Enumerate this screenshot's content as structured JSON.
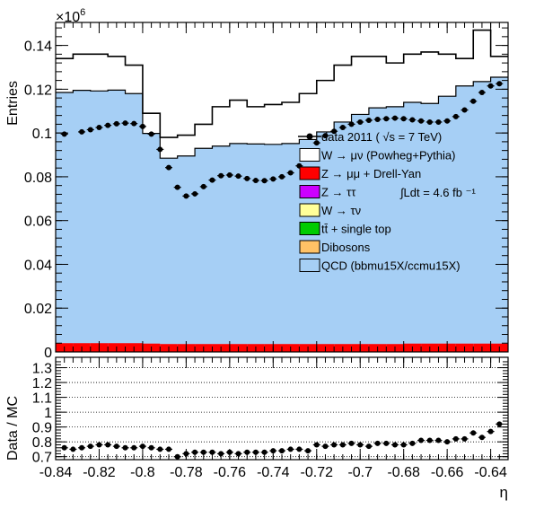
{
  "chart_data": [
    {
      "type": "area",
      "ylabel": "Entries",
      "y_exponent_label": "×10",
      "y_exponent_power": "6",
      "xlim": [
        -0.84,
        -0.632
      ],
      "ylim": [
        0,
        0.1505
      ],
      "y_ticks": [
        0,
        0.02,
        0.04,
        0.06,
        0.08,
        0.1,
        0.12,
        0.14
      ],
      "y_tick_labels": [
        "0",
        "0.02",
        "0.04",
        "0.06",
        "0.08",
        "0.1",
        "0.12",
        "0.14"
      ],
      "grid": false,
      "legend_position": "right",
      "bin_edges": [
        -0.84,
        -0.832,
        -0.824,
        -0.816,
        -0.808,
        -0.8,
        -0.792,
        -0.784,
        -0.776,
        -0.768,
        -0.76,
        -0.752,
        -0.744,
        -0.736,
        -0.728,
        -0.72,
        -0.712,
        -0.704,
        -0.696,
        -0.688,
        -0.68,
        -0.672,
        -0.664,
        -0.656,
        -0.648,
        -0.64,
        -0.632
      ],
      "series": [
        {
          "name": "QCD (bbmu15X/ccmu15X)",
          "color": "#a6cff5",
          "values": [
            0.1185,
            0.1195,
            0.1192,
            0.1196,
            0.118,
            0.0998,
            0.0885,
            0.0895,
            0.093,
            0.094,
            0.0952,
            0.095,
            0.0948,
            0.0952,
            0.097,
            0.1005,
            0.105,
            0.1085,
            0.1115,
            0.112,
            0.114,
            0.1135,
            0.1168,
            0.1215,
            0.1235,
            0.1255
          ]
        },
        {
          "name": "Z → μμ + Drell-Yan",
          "color": "#ff0000",
          "values": [
            0.004,
            0.004,
            0.004,
            0.004,
            0.004,
            0.0038,
            0.0036,
            0.0036,
            0.0036,
            0.0036,
            0.0036,
            0.0036,
            0.0036,
            0.0036,
            0.0036,
            0.0036,
            0.0036,
            0.0036,
            0.0036,
            0.0036,
            0.0038,
            0.0038,
            0.0038,
            0.0038,
            0.0038,
            0.0038
          ]
        },
        {
          "name": "W → μν (Powheg+Pythia)",
          "color": "#ffffff",
          "values": [
            0.134,
            0.136,
            0.136,
            0.135,
            0.131,
            0.109,
            0.098,
            0.099,
            0.104,
            0.112,
            0.115,
            0.112,
            0.113,
            0.114,
            0.118,
            0.124,
            0.131,
            0.135,
            0.135,
            0.132,
            0.136,
            0.137,
            0.136,
            0.134,
            0.147,
            0.135
          ]
        }
      ],
      "legend_only_series": [
        {
          "name": "Z → ττ",
          "color": "#cc00ff"
        },
        {
          "name": "W → τν",
          "color": "#ffff99"
        },
        {
          "name": "tt̄ + single top",
          "color": "#00cc00"
        },
        {
          "name": "Dibosons",
          "color": "#ffc266"
        }
      ],
      "data_series": {
        "name": "data 2011 ( √s = 7 TeV)",
        "x": [
          -0.836,
          -0.828,
          -0.824,
          -0.82,
          -0.816,
          -0.812,
          -0.808,
          -0.804,
          -0.8,
          -0.796,
          -0.792,
          -0.788,
          -0.784,
          -0.78,
          -0.776,
          -0.772,
          -0.768,
          -0.764,
          -0.76,
          -0.756,
          -0.752,
          -0.748,
          -0.744,
          -0.74,
          -0.736,
          -0.732,
          -0.728,
          -0.724,
          -0.72,
          -0.716,
          -0.712,
          -0.708,
          -0.704,
          -0.7,
          -0.696,
          -0.692,
          -0.688,
          -0.684,
          -0.68,
          -0.676,
          -0.672,
          -0.668,
          -0.664,
          -0.66,
          -0.656,
          -0.652,
          -0.648,
          -0.644,
          -0.64,
          -0.636
        ],
        "y": [
          0.0995,
          0.1005,
          0.1015,
          0.1025,
          0.1035,
          0.1042,
          0.1045,
          0.1043,
          0.103,
          0.0995,
          0.0925,
          0.0842,
          0.0752,
          0.0712,
          0.0722,
          0.0755,
          0.0785,
          0.0805,
          0.0808,
          0.0803,
          0.0792,
          0.0783,
          0.0782,
          0.079,
          0.08,
          0.0818,
          0.085,
          0.09,
          0.0955,
          0.0988,
          0.1008,
          0.1025,
          0.104,
          0.105,
          0.1058,
          0.1062,
          0.1065,
          0.1068,
          0.1065,
          0.106,
          0.1055,
          0.105,
          0.105,
          0.1055,
          0.1075,
          0.1105,
          0.1145,
          0.1185,
          0.1215,
          0.1225
        ]
      },
      "annotation": "∫Ldt = 4.6 fb ⁻¹"
    },
    {
      "type": "scatter",
      "ylabel": "Data / MC",
      "xlabel": "η",
      "xlim": [
        -0.84,
        -0.632
      ],
      "ylim": [
        0.68,
        1.37
      ],
      "x_ticks": [
        -0.84,
        -0.82,
        -0.8,
        -0.78,
        -0.76,
        -0.74,
        -0.72,
        -0.7,
        -0.68,
        -0.66,
        -0.64
      ],
      "x_tick_labels": [
        "-0.84",
        "-0.82",
        "-0.8",
        "-0.78",
        "-0.76",
        "-0.74",
        "-0.72",
        "-0.7",
        "-0.68",
        "-0.66",
        "-0.64"
      ],
      "y_ticks": [
        0.7,
        0.8,
        0.9,
        1.0,
        1.1,
        1.2,
        1.3
      ],
      "y_tick_labels": [
        "0.7",
        "0.8",
        "0.9",
        "1",
        "1.1",
        "1.2",
        "1.3"
      ],
      "grid": true,
      "x": [
        -0.836,
        -0.832,
        -0.828,
        -0.824,
        -0.82,
        -0.816,
        -0.812,
        -0.808,
        -0.804,
        -0.8,
        -0.796,
        -0.792,
        -0.788,
        -0.784,
        -0.78,
        -0.776,
        -0.772,
        -0.768,
        -0.764,
        -0.76,
        -0.756,
        -0.752,
        -0.748,
        -0.744,
        -0.74,
        -0.736,
        -0.732,
        -0.728,
        -0.724,
        -0.72,
        -0.716,
        -0.712,
        -0.708,
        -0.704,
        -0.7,
        -0.696,
        -0.692,
        -0.688,
        -0.684,
        -0.68,
        -0.676,
        -0.672,
        -0.668,
        -0.664,
        -0.66,
        -0.656,
        -0.652,
        -0.648,
        -0.644,
        -0.64,
        -0.636
      ],
      "y": [
        0.76,
        0.75,
        0.76,
        0.77,
        0.78,
        0.78,
        0.77,
        0.76,
        0.76,
        0.77,
        0.76,
        0.75,
        0.75,
        0.7,
        0.72,
        0.73,
        0.73,
        0.73,
        0.72,
        0.73,
        0.72,
        0.73,
        0.73,
        0.73,
        0.74,
        0.74,
        0.75,
        0.75,
        0.74,
        0.78,
        0.77,
        0.78,
        0.78,
        0.79,
        0.78,
        0.77,
        0.79,
        0.79,
        0.78,
        0.78,
        0.79,
        0.81,
        0.81,
        0.81,
        0.8,
        0.82,
        0.82,
        0.86,
        0.83,
        0.87,
        0.92
      ]
    }
  ]
}
